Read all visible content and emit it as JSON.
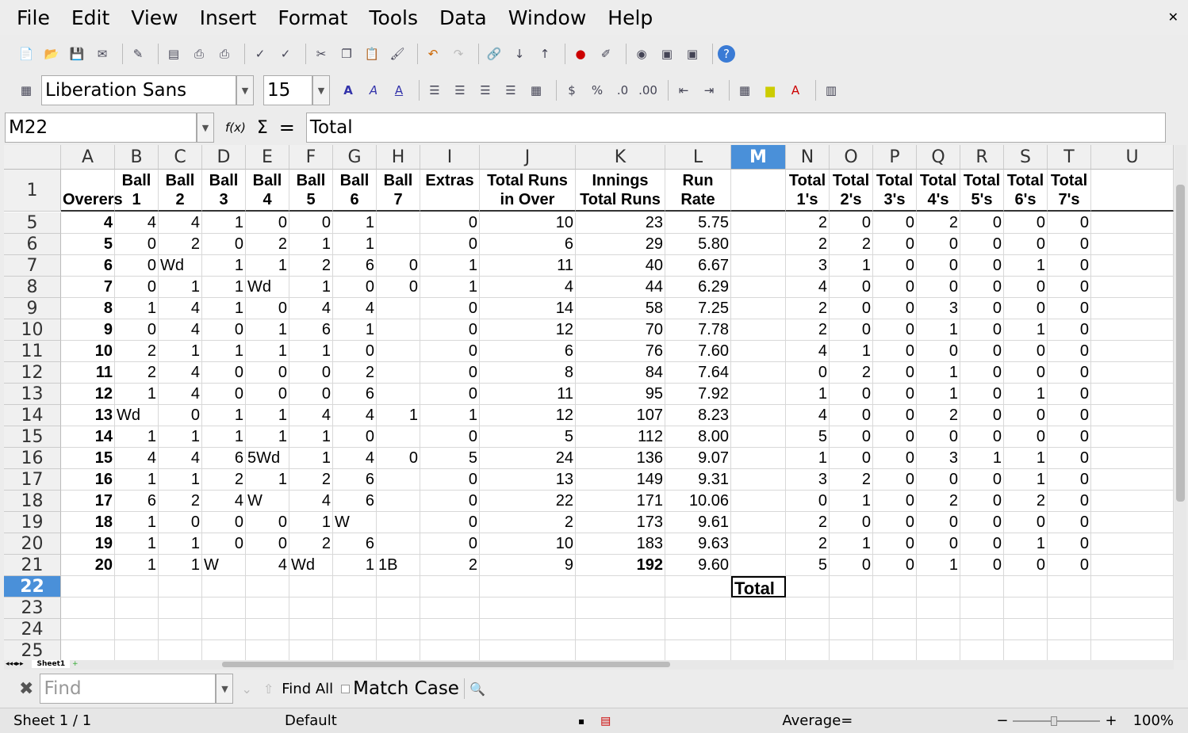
{
  "menu": [
    "File",
    "Edit",
    "View",
    "Insert",
    "Format",
    "Tools",
    "Data",
    "Window",
    "Help"
  ],
  "font": {
    "name": "Liberation Sans",
    "size": "15"
  },
  "formula": {
    "cell_ref": "M22",
    "fx": "f(x)",
    "sum": "Σ",
    "eq": "=",
    "content": "Total"
  },
  "columns": [
    "A",
    "B",
    "C",
    "D",
    "E",
    "F",
    "G",
    "H",
    "I",
    "J",
    "K",
    "L",
    "M",
    "N",
    "O",
    "P",
    "Q",
    "R",
    "S",
    "T",
    "U"
  ],
  "selected_column": "M",
  "selected_row": "22",
  "header_row": {
    "row": "1",
    "cells": [
      "Overers",
      "Ball\n1",
      "Ball\n2",
      "Ball\n3",
      "Ball\n4",
      "Ball\n5",
      "Ball\n6",
      "Ball\n7",
      "Extras",
      "Total Runs\nin Over",
      "Innings\nTotal Runs",
      "Run\nRate",
      "",
      "Total\n1's",
      "Total\n2's",
      "Total\n3's",
      "Total\n4's",
      "Total\n5's",
      "Total\n6's",
      "Total\n7's",
      ""
    ]
  },
  "rows": [
    {
      "n": "5",
      "c": [
        "4",
        "4",
        "4",
        "1",
        "0",
        "0",
        "1",
        "",
        "0",
        "10",
        "23",
        "5.75",
        "",
        "2",
        "0",
        "0",
        "2",
        "0",
        "0",
        "0"
      ]
    },
    {
      "n": "6",
      "c": [
        "5",
        "0",
        "2",
        "0",
        "2",
        "1",
        "1",
        "",
        "0",
        "6",
        "29",
        "5.80",
        "",
        "2",
        "2",
        "0",
        "0",
        "0",
        "0",
        "0"
      ]
    },
    {
      "n": "7",
      "c": [
        "6",
        "0",
        "Wd",
        "1",
        "1",
        "2",
        "6",
        "0",
        "1",
        "11",
        "40",
        "6.67",
        "",
        "3",
        "1",
        "0",
        "0",
        "0",
        "1",
        "0"
      ]
    },
    {
      "n": "8",
      "c": [
        "7",
        "0",
        "1",
        "1",
        "Wd",
        "1",
        "0",
        "0",
        "1",
        "4",
        "44",
        "6.29",
        "",
        "4",
        "0",
        "0",
        "0",
        "0",
        "0",
        "0"
      ]
    },
    {
      "n": "9",
      "c": [
        "8",
        "1",
        "4",
        "1",
        "0",
        "4",
        "4",
        "",
        "0",
        "14",
        "58",
        "7.25",
        "",
        "2",
        "0",
        "0",
        "3",
        "0",
        "0",
        "0"
      ]
    },
    {
      "n": "10",
      "c": [
        "9",
        "0",
        "4",
        "0",
        "1",
        "6",
        "1",
        "",
        "0",
        "12",
        "70",
        "7.78",
        "",
        "2",
        "0",
        "0",
        "1",
        "0",
        "1",
        "0"
      ]
    },
    {
      "n": "11",
      "c": [
        "10",
        "2",
        "1",
        "1",
        "1",
        "1",
        "0",
        "",
        "0",
        "6",
        "76",
        "7.60",
        "",
        "4",
        "1",
        "0",
        "0",
        "0",
        "0",
        "0"
      ]
    },
    {
      "n": "12",
      "c": [
        "11",
        "2",
        "4",
        "0",
        "0",
        "0",
        "2",
        "",
        "0",
        "8",
        "84",
        "7.64",
        "",
        "0",
        "2",
        "0",
        "1",
        "0",
        "0",
        "0"
      ]
    },
    {
      "n": "13",
      "c": [
        "12",
        "1",
        "4",
        "0",
        "0",
        "0",
        "6",
        "",
        "0",
        "11",
        "95",
        "7.92",
        "",
        "1",
        "0",
        "0",
        "1",
        "0",
        "1",
        "0"
      ]
    },
    {
      "n": "14",
      "c": [
        "13",
        "Wd",
        "0",
        "1",
        "1",
        "4",
        "4",
        "1",
        "1",
        "12",
        "107",
        "8.23",
        "",
        "4",
        "0",
        "0",
        "2",
        "0",
        "0",
        "0"
      ]
    },
    {
      "n": "15",
      "c": [
        "14",
        "1",
        "1",
        "1",
        "1",
        "1",
        "0",
        "",
        "0",
        "5",
        "112",
        "8.00",
        "",
        "5",
        "0",
        "0",
        "0",
        "0",
        "0",
        "0"
      ]
    },
    {
      "n": "16",
      "c": [
        "15",
        "4",
        "4",
        "6",
        "5Wd",
        "1",
        "4",
        "0",
        "5",
        "24",
        "136",
        "9.07",
        "",
        "1",
        "0",
        "0",
        "3",
        "1",
        "1",
        "0"
      ]
    },
    {
      "n": "17",
      "c": [
        "16",
        "1",
        "1",
        "2",
        "1",
        "2",
        "6",
        "",
        "0",
        "13",
        "149",
        "9.31",
        "",
        "3",
        "2",
        "0",
        "0",
        "0",
        "1",
        "0"
      ]
    },
    {
      "n": "18",
      "c": [
        "17",
        "6",
        "2",
        "4",
        "W",
        "4",
        "6",
        "",
        "0",
        "22",
        "171",
        "10.06",
        "",
        "0",
        "1",
        "0",
        "2",
        "0",
        "2",
        "0"
      ]
    },
    {
      "n": "19",
      "c": [
        "18",
        "1",
        "0",
        "0",
        "0",
        "1",
        "W",
        "",
        "0",
        "2",
        "173",
        "9.61",
        "",
        "2",
        "0",
        "0",
        "0",
        "0",
        "0",
        "0"
      ]
    },
    {
      "n": "20",
      "c": [
        "19",
        "1",
        "1",
        "0",
        "0",
        "2",
        "6",
        "",
        "0",
        "10",
        "183",
        "9.63",
        "",
        "2",
        "1",
        "0",
        "0",
        "0",
        "1",
        "0"
      ]
    },
    {
      "n": "21",
      "c": [
        "20",
        "1",
        "1",
        "W",
        "4",
        "Wd",
        "1",
        "1B",
        "2",
        "9",
        "192",
        "9.60",
        "",
        "5",
        "0",
        "0",
        "1",
        "0",
        "0",
        "0"
      ]
    },
    {
      "n": "22",
      "c": [
        "",
        "",
        "",
        "",
        "",
        "",
        "",
        "",
        "",
        "",
        "",
        "",
        "Total",
        "",
        "",
        "",
        "",
        "",
        "",
        ""
      ]
    },
    {
      "n": "23",
      "c": []
    },
    {
      "n": "24",
      "c": []
    },
    {
      "n": "25",
      "c": []
    }
  ],
  "sheet_tab": "Sheet1",
  "find": {
    "placeholder": "Find",
    "find_all": "Find All",
    "match_case": "Match Case"
  },
  "status": {
    "sheet": "Sheet 1 / 1",
    "style": "Default",
    "average": "Average=",
    "zoom": "100%"
  },
  "colors": {
    "selection": "#4a90d9"
  }
}
